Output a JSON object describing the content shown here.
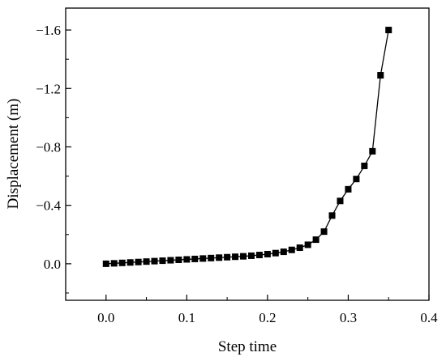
{
  "chart_data": {
    "type": "line",
    "xlabel": "Step time",
    "ylabel": "Displacement (m)",
    "xlim": [
      -0.05,
      0.4
    ],
    "ylim": [
      0.25,
      -1.75
    ],
    "y_axis_inverted": true,
    "grid": false,
    "x_ticks": [
      0.0,
      0.1,
      0.2,
      0.3,
      0.4
    ],
    "x_tick_labels": [
      "0.0",
      "0.1",
      "0.2",
      "0.3",
      "0.4"
    ],
    "y_ticks": [
      0.0,
      -0.4,
      -0.8,
      -1.2,
      -1.6
    ],
    "y_tick_labels": [
      "0.0",
      "−0.4",
      "−0.8",
      "−1.2",
      "−1.6"
    ],
    "marker": "square",
    "color": "#000000",
    "series": [
      {
        "x": [
          0.0,
          0.01,
          0.02,
          0.03,
          0.04,
          0.05,
          0.06,
          0.07,
          0.08,
          0.09,
          0.1,
          0.11,
          0.12,
          0.13,
          0.14,
          0.15,
          0.16,
          0.17,
          0.18,
          0.19,
          0.2,
          0.21,
          0.22,
          0.23,
          0.24,
          0.25,
          0.26,
          0.27,
          0.28,
          0.29,
          0.3,
          0.31,
          0.32,
          0.33,
          0.34,
          0.35
        ],
        "y": [
          0.0,
          -0.003,
          -0.006,
          -0.009,
          -0.012,
          -0.015,
          -0.018,
          -0.021,
          -0.024,
          -0.027,
          -0.03,
          -0.033,
          -0.036,
          -0.039,
          -0.042,
          -0.045,
          -0.048,
          -0.051,
          -0.055,
          -0.06,
          -0.066,
          -0.073,
          -0.082,
          -0.095,
          -0.11,
          -0.13,
          -0.165,
          -0.22,
          -0.33,
          -0.43,
          -0.51,
          -0.58,
          -0.67,
          -0.77,
          -1.29,
          -1.6
        ]
      }
    ]
  }
}
